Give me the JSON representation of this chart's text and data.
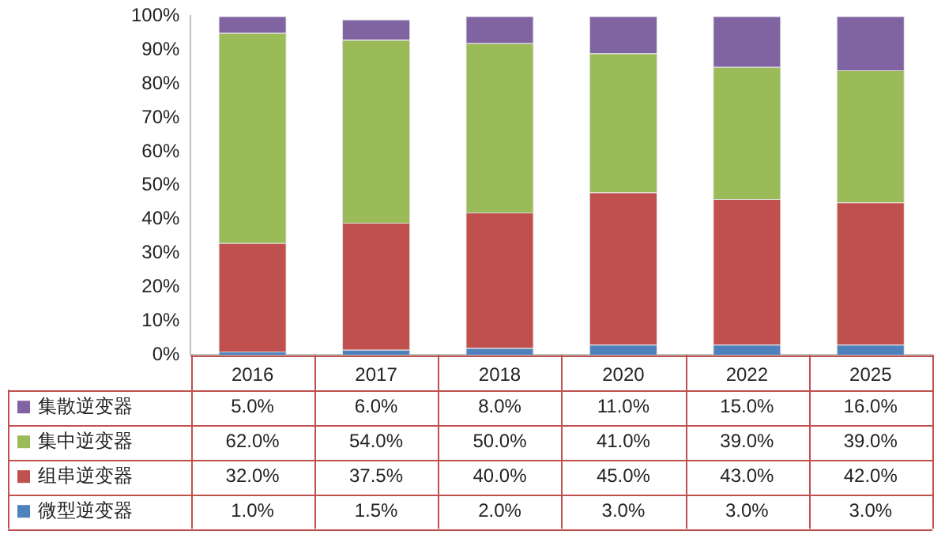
{
  "chart_data": {
    "type": "bar",
    "stacked": true,
    "legend": "bottom",
    "grid": false,
    "categories": [
      "2016",
      "2017",
      "2018",
      "2020",
      "2022",
      "2025"
    ],
    "ylim": [
      0,
      100
    ],
    "yticks": [
      {
        "value": 0,
        "label": "0%"
      },
      {
        "value": 10,
        "label": "10%"
      },
      {
        "value": 20,
        "label": "20%"
      },
      {
        "value": 30,
        "label": "30%"
      },
      {
        "value": 40,
        "label": "40%"
      },
      {
        "value": 50,
        "label": "50%"
      },
      {
        "value": 60,
        "label": "60%"
      },
      {
        "value": 70,
        "label": "70%"
      },
      {
        "value": 80,
        "label": "80%"
      },
      {
        "value": 90,
        "label": "90%"
      },
      {
        "value": 100,
        "label": "100%"
      }
    ],
    "series": [
      {
        "name": "微型逆变器",
        "color": "#4f81bd",
        "values": [
          1.0,
          1.5,
          2.0,
          3.0,
          3.0,
          3.0
        ],
        "value_labels": [
          "1.0%",
          "1.5%",
          "2.0%",
          "3.0%",
          "3.0%",
          "3.0%"
        ]
      },
      {
        "name": "组串逆变器",
        "color": "#c0504d",
        "values": [
          32.0,
          37.5,
          40.0,
          45.0,
          43.0,
          42.0
        ],
        "value_labels": [
          "32.0%",
          "37.5%",
          "40.0%",
          "45.0%",
          "43.0%",
          "42.0%"
        ]
      },
      {
        "name": "集中逆变器",
        "color": "#9bbb59",
        "values": [
          62.0,
          54.0,
          50.0,
          41.0,
          39.0,
          39.0
        ],
        "value_labels": [
          "62.0%",
          "54.0%",
          "50.0%",
          "41.0%",
          "39.0%",
          "39.0%"
        ]
      },
      {
        "name": "集散逆变器",
        "color": "#8064a2",
        "values": [
          5.0,
          6.0,
          8.0,
          11.0,
          15.0,
          16.0
        ],
        "value_labels": [
          "5.0%",
          "6.0%",
          "8.0%",
          "11.0%",
          "15.0%",
          "16.0%"
        ]
      }
    ]
  }
}
